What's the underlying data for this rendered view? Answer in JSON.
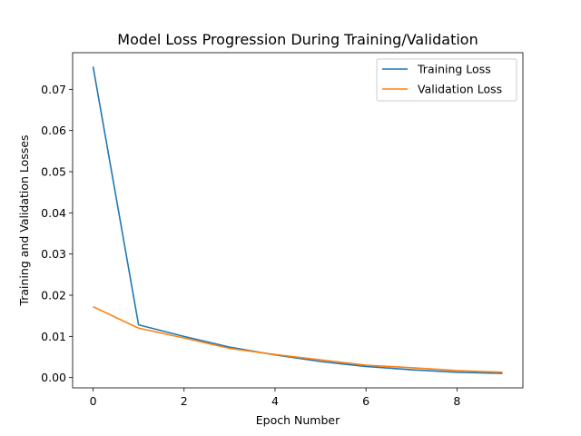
{
  "chart_data": {
    "type": "line",
    "title": "Model Loss Progression During Training/Validation",
    "xlabel": "Epoch Number",
    "ylabel": "Training and Validation Losses",
    "x": [
      0,
      1,
      2,
      3,
      4,
      5,
      6,
      7,
      8,
      9
    ],
    "xlim": [
      -0.45,
      9.45
    ],
    "ylim": [
      -0.0025,
      0.0789
    ],
    "xticks": [
      0,
      2,
      4,
      6,
      8
    ],
    "xtick_labels": [
      "0",
      "2",
      "4",
      "6",
      "8"
    ],
    "yticks": [
      0.0,
      0.01,
      0.02,
      0.03,
      0.04,
      0.05,
      0.06,
      0.07
    ],
    "ytick_labels": [
      "0.00",
      "0.01",
      "0.02",
      "0.03",
      "0.04",
      "0.05",
      "0.06",
      "0.07"
    ],
    "grid": false,
    "legend_position": "top-right",
    "series": [
      {
        "name": "Training Loss",
        "color": "#1f77b4",
        "values": [
          0.0755,
          0.0128,
          0.01,
          0.0074,
          0.0055,
          0.0039,
          0.0027,
          0.0019,
          0.0013,
          0.001
        ]
      },
      {
        "name": "Validation Loss",
        "color": "#ff7f0e",
        "values": [
          0.0172,
          0.012,
          0.0096,
          0.0071,
          0.0056,
          0.0043,
          0.003,
          0.0024,
          0.0017,
          0.0013
        ]
      }
    ]
  }
}
